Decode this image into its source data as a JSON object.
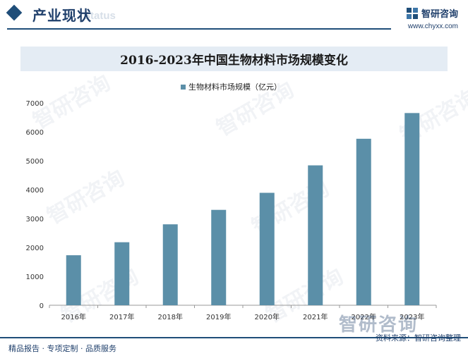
{
  "header": {
    "section_title": "产业现状",
    "section_subtitle": "Status",
    "brand_name": "智研咨询",
    "brand_url": "www.chyxx.com"
  },
  "watermark_text": "智研咨询",
  "footer": {
    "left_text": "精品报告 · 专项定制 · 品质服务",
    "right_text": "资料来源：智研咨询整理",
    "brand_text": "智研咨询"
  },
  "colors": {
    "bar": "#5b8fa8",
    "brand": "#1f4e79",
    "title_band": "#e4ecf4"
  },
  "chart_data": {
    "type": "bar",
    "title": "2016-2023年中国生物材料市场规模变化",
    "categories": [
      "2016年",
      "2017年",
      "2018年",
      "2019年",
      "2020年",
      "2021年",
      "2022年",
      "2023年"
    ],
    "series": [
      {
        "name": "生物材料市场规模（亿元）",
        "values": [
          1730,
          2180,
          2800,
          3300,
          3890,
          4840,
          5760,
          6650
        ]
      }
    ],
    "ylim": [
      0,
      7000
    ],
    "yticks": [
      0,
      1000,
      2000,
      3000,
      4000,
      5000,
      6000,
      7000
    ],
    "grid": false,
    "legend_position": "top"
  }
}
